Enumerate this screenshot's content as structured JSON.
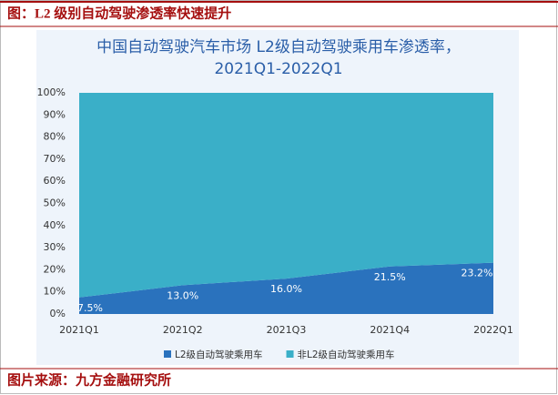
{
  "header": {
    "title": "图：L2 级别自动驾驶渗透率快速提升"
  },
  "chart_data": {
    "type": "stacked-area",
    "title": "中国自动驾驶汽车市场 L2级自动驾驶乘用车渗透率，",
    "subtitle": "2021Q1-2022Q1",
    "categories": [
      "2021Q1",
      "2021Q2",
      "2021Q3",
      "2021Q4",
      "2022Q1"
    ],
    "series": [
      {
        "name": "L2级自动驾驶乘用车",
        "color": "#2a72bd",
        "values": [
          7.5,
          13.0,
          16.0,
          21.5,
          23.2
        ],
        "value_labels": [
          "7.5%",
          "13.0%",
          "16.0%",
          "21.5%",
          "23.2%"
        ]
      },
      {
        "name": "非L2级自动驾驶乘用车",
        "color": "#3aafc8",
        "values": [
          92.5,
          87.0,
          84.0,
          78.5,
          76.8
        ]
      }
    ],
    "ylim": [
      0,
      100
    ],
    "yticks": [
      {
        "value": 0,
        "label": "0%"
      },
      {
        "value": 10,
        "label": "10%"
      },
      {
        "value": 20,
        "label": "20%"
      },
      {
        "value": 30,
        "label": "30%"
      },
      {
        "value": 40,
        "label": "40%"
      },
      {
        "value": 50,
        "label": "50%"
      },
      {
        "value": 60,
        "label": "60%"
      },
      {
        "value": 70,
        "label": "70%"
      },
      {
        "value": 80,
        "label": "80%"
      },
      {
        "value": 90,
        "label": "90%"
      },
      {
        "value": 100,
        "label": "100%"
      }
    ],
    "legend": "bottom"
  },
  "source": {
    "text": "图片来源：九方金融研究所"
  }
}
